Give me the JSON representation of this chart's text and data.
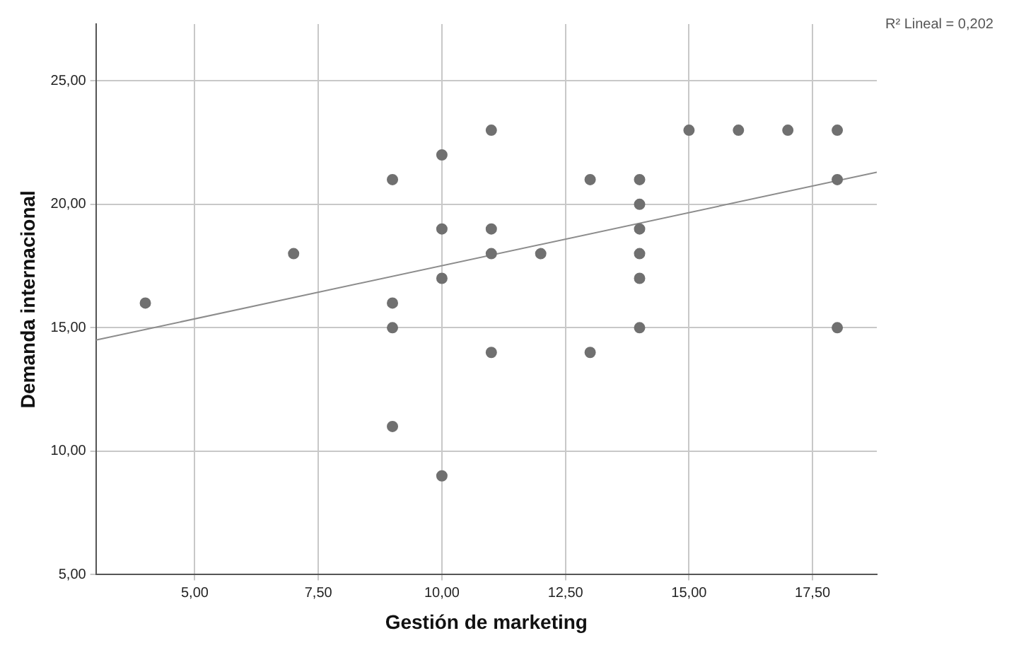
{
  "chart_data": {
    "type": "scatter",
    "xlabel": "Gestión de marketing",
    "ylabel": "Demanda internacional",
    "xlim": [
      3.0,
      18.8
    ],
    "ylim": [
      5,
      27.3
    ],
    "xticks": [
      {
        "value": 5,
        "label": "5,00"
      },
      {
        "value": 7.5,
        "label": "7,50"
      },
      {
        "value": 10,
        "label": "10,00"
      },
      {
        "value": 12.5,
        "label": "12,50"
      },
      {
        "value": 15,
        "label": "15,00"
      },
      {
        "value": 17.5,
        "label": "17,50"
      }
    ],
    "yticks": [
      {
        "value": 5,
        "label": "5,00"
      },
      {
        "value": 10,
        "label": "10,00"
      },
      {
        "value": 15,
        "label": "15,00"
      },
      {
        "value": 20,
        "label": "20,00"
      },
      {
        "value": 25,
        "label": "25,00"
      }
    ],
    "grid": true,
    "annotations": [
      "R² Lineal = 0,202"
    ],
    "series": [
      {
        "marker": "circle",
        "color": "#707070",
        "x": [
          4,
          7,
          9,
          9,
          9,
          9,
          10,
          10,
          10,
          10,
          11,
          11,
          11,
          11,
          12,
          13,
          13,
          14,
          14,
          14,
          14,
          14,
          14,
          15,
          16,
          17,
          18,
          18,
          18
        ],
        "values": [
          16,
          18,
          21,
          16,
          15,
          11,
          22,
          19,
          17,
          9,
          23,
          19,
          18,
          14,
          18,
          21,
          14,
          21,
          20,
          19,
          18,
          17,
          15,
          23,
          23,
          23,
          23,
          21,
          15
        ]
      },
      {
        "type": "line",
        "marker": "none",
        "color": "#8c8c8c",
        "x": [
          3.0,
          18.8
        ],
        "values": [
          14.5,
          21.3
        ]
      }
    ]
  }
}
